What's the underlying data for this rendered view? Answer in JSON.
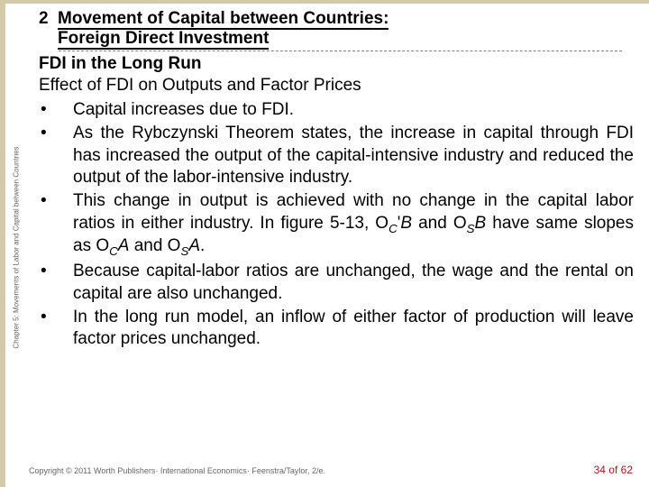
{
  "stripe_color": "#d4c9a8",
  "sidebar": {
    "label": "Chapter 5: Movements of Labor and Capital between Countries"
  },
  "section": {
    "number": "2",
    "title_line1": "Movement of Capital between Countries:",
    "title_line2": "Foreign Direct Investment"
  },
  "subtitle": "FDI in the Long Run",
  "subheading": "Effect of FDI on Outputs and Factor Prices",
  "bullets": [
    "Capital increases due to FDI.",
    "As the Rybczynski Theorem states, the increase in capital through FDI has increased the output of the capital-intensive industry and reduced the output of the labor-intensive industry.",
    "This change in output is achieved with no change in the capital labor ratios in either industry. In figure 5-13, O_C'B and O_SB have same slopes as O_CA and O_SA.",
    "Because capital-labor ratios are unchanged, the wage and the rental on capital are also unchanged.",
    "In the long run model, an inflow of either factor of production will leave factor prices unchanged."
  ],
  "footer": {
    "copyright": "Copyright © 2011 Worth Publishers· International Economics· Feenstra/Taylor, 2/e.",
    "page": "34 of 62"
  }
}
